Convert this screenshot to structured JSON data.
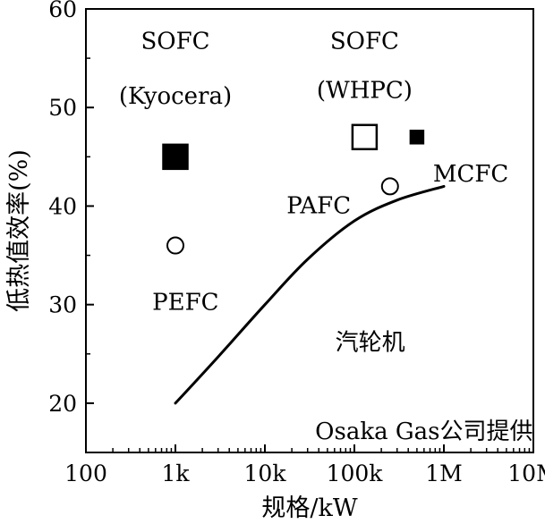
{
  "chart_data": {
    "type": "scatter",
    "xlabel": "规格/kW",
    "ylabel": "低热值效率(%)",
    "x_scale": "log",
    "xlim": [
      100,
      10000000
    ],
    "ylim": [
      15,
      60
    ],
    "x_ticks": [
      {
        "value": 100,
        "label": "100"
      },
      {
        "value": 1000,
        "label": "1k"
      },
      {
        "value": 10000,
        "label": "10k"
      },
      {
        "value": 100000,
        "label": "100k"
      },
      {
        "value": 1000000,
        "label": "1M"
      },
      {
        "value": 10000000,
        "label": "10M"
      }
    ],
    "y_ticks": [
      {
        "value": 20,
        "label": "20"
      },
      {
        "value": 30,
        "label": "30"
      },
      {
        "value": 40,
        "label": "40"
      },
      {
        "value": 50,
        "label": "50"
      },
      {
        "value": 60,
        "label": "60"
      }
    ],
    "grid": false,
    "points": [
      {
        "x": 1000,
        "y": 45,
        "marker": "filled-square",
        "size": "large"
      },
      {
        "x": 130000,
        "y": 47,
        "marker": "open-square",
        "size": "large"
      },
      {
        "x": 500000,
        "y": 47,
        "marker": "filled-square",
        "size": "small"
      },
      {
        "x": 1000,
        "y": 36,
        "marker": "open-circle",
        "size": "small"
      },
      {
        "x": 250000,
        "y": 42,
        "marker": "open-circle",
        "size": "small"
      }
    ],
    "curve": {
      "x": [
        1000,
        3000,
        10000,
        30000,
        100000,
        300000,
        1000000
      ],
      "y": [
        20,
        24.7,
        30,
        34.6,
        38.5,
        40.6,
        42
      ]
    },
    "annotations": [
      {
        "text": "SOFC",
        "x": 1000,
        "y": 56.8
      },
      {
        "text": "(Kyocera)",
        "x": 1000,
        "y": 51.2
      },
      {
        "text": "SOFC",
        "x": 130000,
        "y": 56.8
      },
      {
        "text": "(WHPC)",
        "x": 130000,
        "y": 51.8
      },
      {
        "text": "MCFC",
        "x": 2000000,
        "y": 43.3
      },
      {
        "text": "PAFC",
        "x": 40000,
        "y": 40.1
      },
      {
        "text": "PEFC",
        "x": 1300,
        "y": 30.3
      },
      {
        "text": "汽轮机",
        "x": 150000,
        "y": 26.2
      },
      {
        "text": "Osaka Gas公司提供",
        "x": 600000,
        "y": 17.2
      }
    ]
  }
}
